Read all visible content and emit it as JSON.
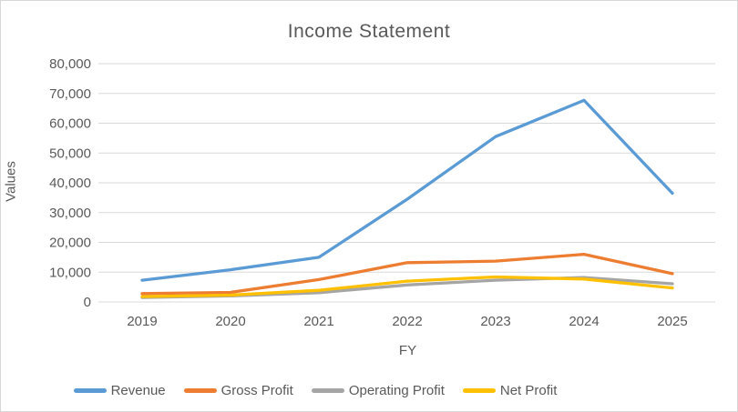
{
  "chart_data": {
    "type": "line",
    "title": "Income Statement",
    "xlabel": "FY",
    "ylabel": "Values",
    "categories": [
      "2019",
      "2020",
      "2021",
      "2022",
      "2023",
      "2024",
      "2025"
    ],
    "series": [
      {
        "name": "Revenue",
        "color": "#5B9BD5",
        "values": [
          7300,
          10800,
          15000,
          34500,
          55500,
          67700,
          36500
        ]
      },
      {
        "name": "Gross Profit",
        "color": "#ED7D31",
        "values": [
          2800,
          3200,
          7500,
          13200,
          13700,
          16000,
          9500
        ]
      },
      {
        "name": "Operating Profit",
        "color": "#A5A5A5",
        "values": [
          1500,
          2000,
          3100,
          5700,
          7300,
          8200,
          6100
        ]
      },
      {
        "name": "Net Profit",
        "color": "#FFC000",
        "values": [
          1800,
          2300,
          3900,
          7000,
          8400,
          7700,
          4700
        ]
      }
    ],
    "ylim": [
      0,
      80000
    ],
    "ytick_step": 10000,
    "ytick_labels": [
      "0",
      "10,000",
      "20,000",
      "30,000",
      "40,000",
      "50,000",
      "60,000",
      "70,000",
      "80,000"
    ],
    "grid": true,
    "gridline_color": "#D9D9D9",
    "text_color": "#595959",
    "legend_position": "bottom"
  }
}
